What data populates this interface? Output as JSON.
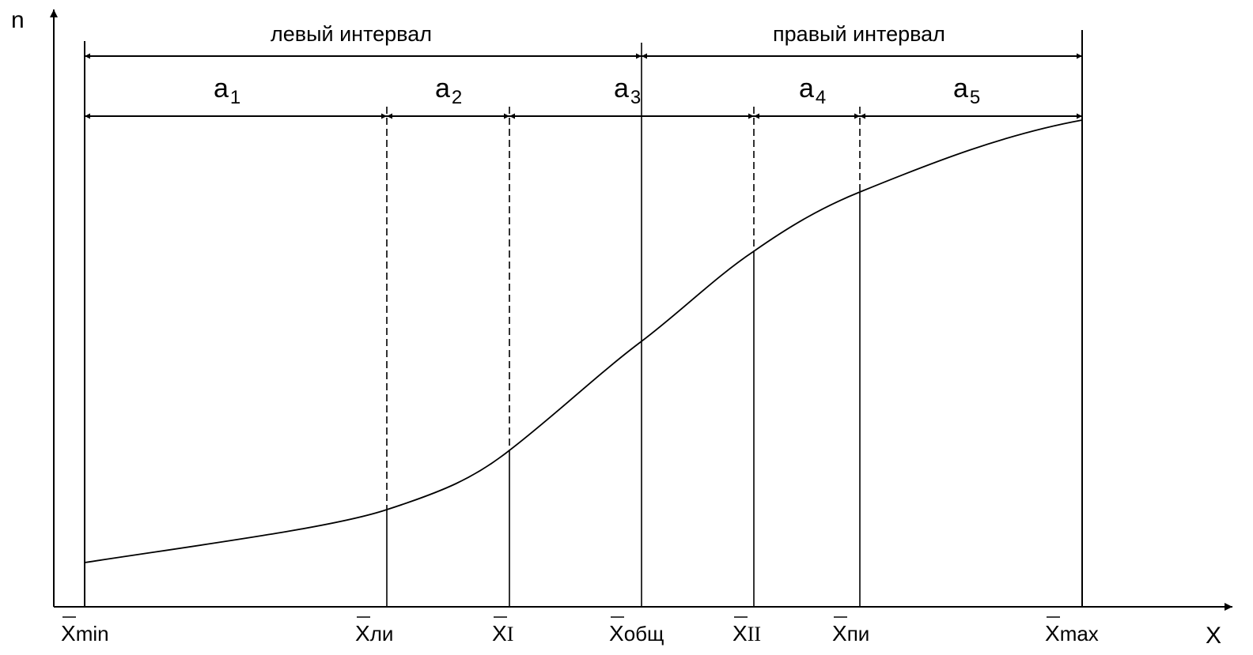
{
  "axes": {
    "y_label": "n",
    "x_label": "X"
  },
  "intervals": {
    "left": "левый интервал",
    "right": "правый интервал"
  },
  "segments": [
    {
      "main": "a",
      "sub": "1"
    },
    {
      "main": "a",
      "sub": "2"
    },
    {
      "main": "a",
      "sub": "3"
    },
    {
      "main": "a",
      "sub": "4"
    },
    {
      "main": "a",
      "sub": "5"
    }
  ],
  "points": [
    {
      "main": "X",
      "sub": "min",
      "overline": true
    },
    {
      "main": "X",
      "sub": "ли",
      "overline": true
    },
    {
      "main": "X",
      "sub": "I",
      "overline": true
    },
    {
      "main": "X",
      "sub": "общ",
      "overline": true
    },
    {
      "main": "X",
      "sub": "II",
      "overline": true
    },
    {
      "main": "X",
      "sub": "пи",
      "overline": true
    },
    {
      "main": "X",
      "sub": "max",
      "overline": true
    }
  ],
  "colors": {
    "line": "#000000",
    "background": "#ffffff"
  }
}
